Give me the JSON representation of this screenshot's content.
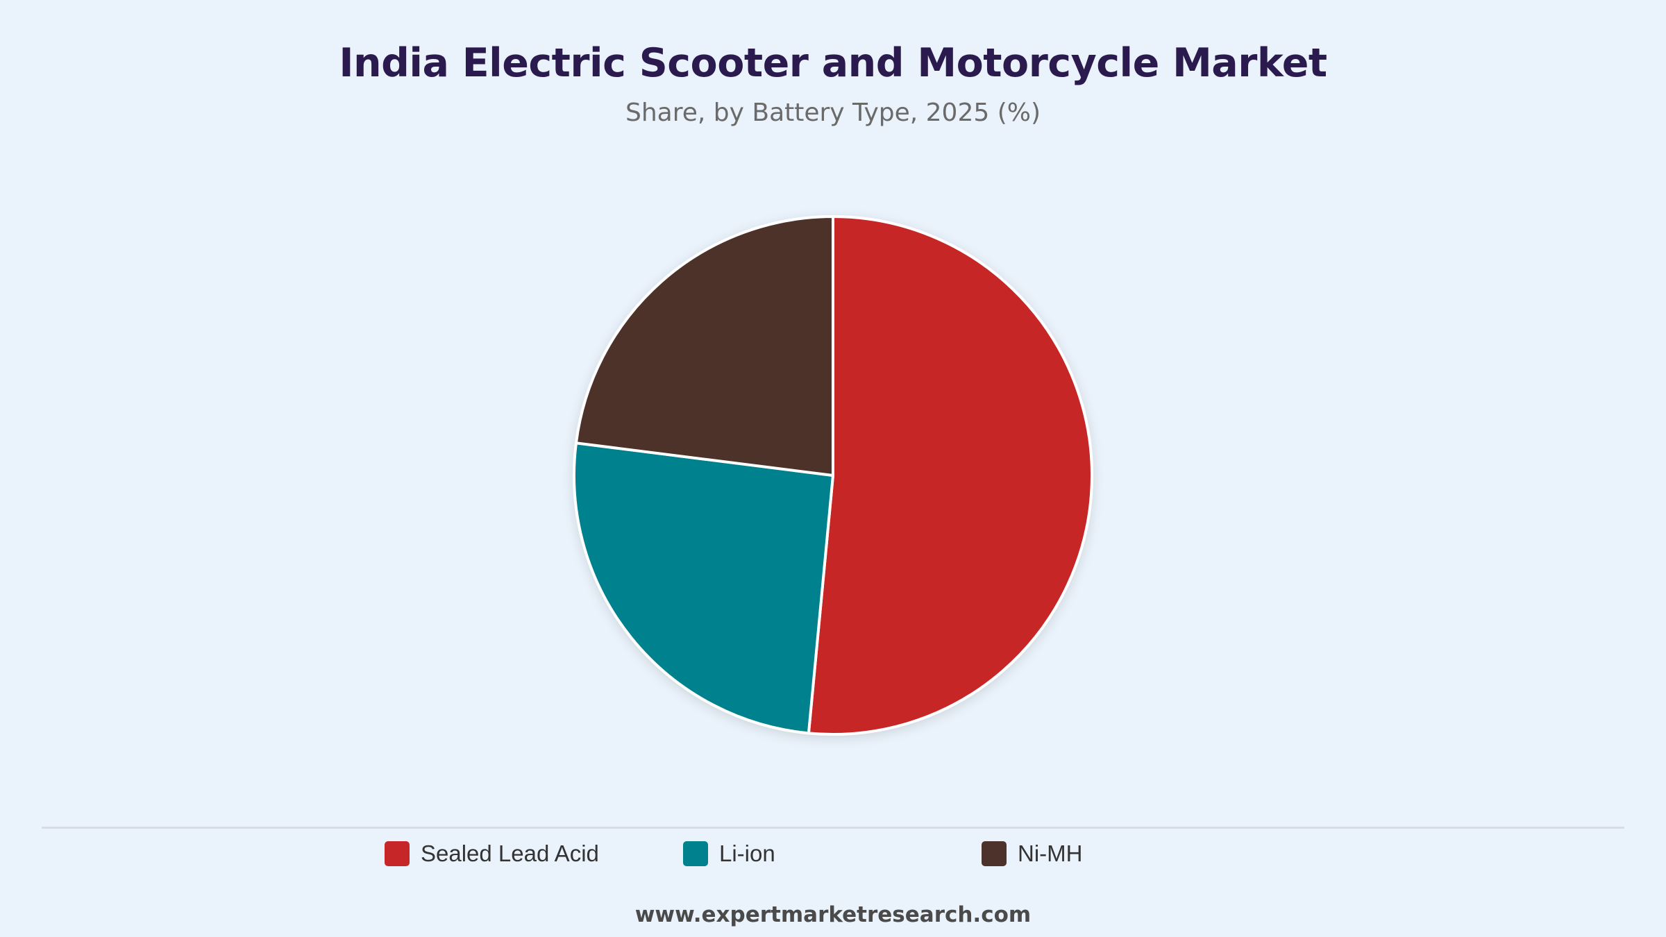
{
  "title": "India Electric Scooter and Motorcycle Market",
  "subtitle": "Share, by Battery Type, 2025 (%)",
  "source": "www.expertmarketresearch.com",
  "colors": {
    "background": "#eaf2fb",
    "title": "#2b1a4e",
    "slice_border": "#ffffff"
  },
  "chart_data": {
    "type": "pie",
    "start_angle": "12 o'clock, clockwise",
    "legend_position": "bottom",
    "slices": [
      {
        "label": "Sealed Lead Acid",
        "value": 51.5,
        "color": "#c62627"
      },
      {
        "label": "Li-ion",
        "value": 25.5,
        "color": "#00818e"
      },
      {
        "label": "Ni-MH",
        "value": 23.0,
        "color": "#4d322c"
      }
    ]
  }
}
